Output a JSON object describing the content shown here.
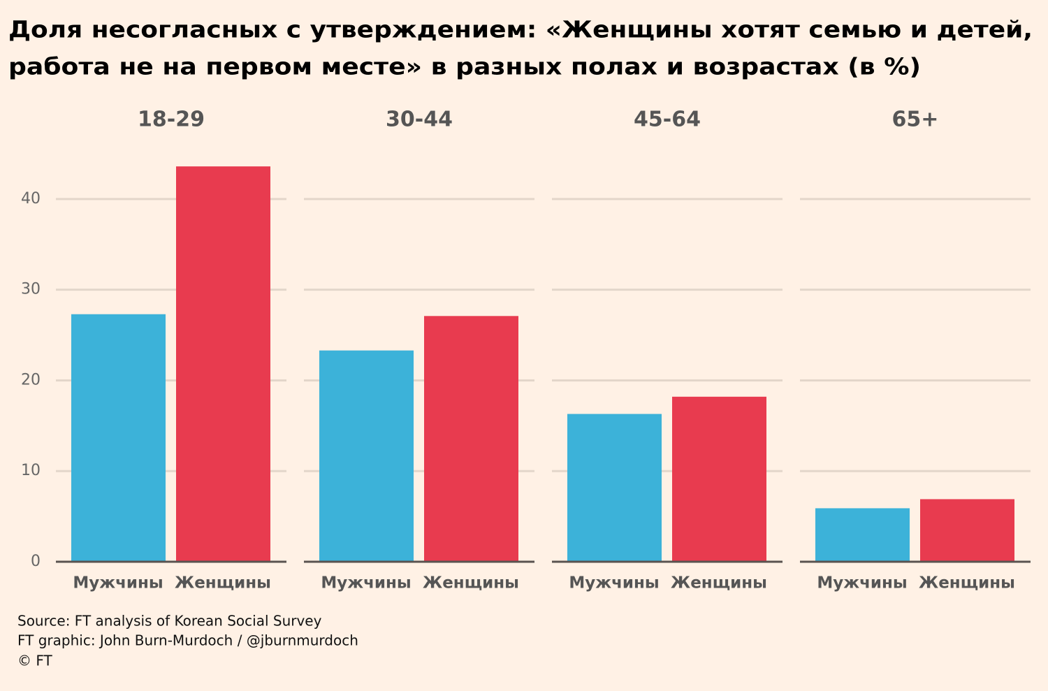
{
  "title": [
    "Доля несогласных с утверждением: «Женщины хотят семью и детей,",
    "работа не на первом месте» в разных полах и возрастах (в %)"
  ],
  "chart_data": [
    {
      "type": "bar",
      "title": "18-29",
      "categories": [
        "Мужчины",
        "Женщины"
      ],
      "values": [
        27.3,
        43.6
      ],
      "colors": [
        "#3cb2d9",
        "#e83b4f"
      ],
      "ylim": [
        0,
        45
      ],
      "yticks": [
        0,
        10,
        20,
        30,
        40
      ],
      "grid": true
    },
    {
      "type": "bar",
      "title": "30-44",
      "categories": [
        "Мужчины",
        "Женщины"
      ],
      "values": [
        23.3,
        27.1
      ],
      "colors": [
        "#3cb2d9",
        "#e83b4f"
      ],
      "ylim": [
        0,
        45
      ],
      "yticks": [
        0,
        10,
        20,
        30,
        40
      ],
      "grid": true
    },
    {
      "type": "bar",
      "title": "45-64",
      "categories": [
        "Мужчины",
        "Женщины"
      ],
      "values": [
        16.3,
        18.2
      ],
      "colors": [
        "#3cb2d9",
        "#e83b4f"
      ],
      "ylim": [
        0,
        45
      ],
      "yticks": [
        0,
        10,
        20,
        30,
        40
      ],
      "grid": true
    },
    {
      "type": "bar",
      "title": "65+",
      "categories": [
        "Мужчины",
        "Женщины"
      ],
      "values": [
        5.9,
        6.9
      ],
      "colors": [
        "#3cb2d9",
        "#e83b4f"
      ],
      "ylim": [
        0,
        45
      ],
      "yticks": [
        0,
        10,
        20,
        30,
        40
      ],
      "grid": true
    }
  ],
  "notes": [
    "Source: FT analysis of Korean Social Survey",
    "FT graphic: John Burn-Murdoch / @jburnmurdoch",
    "© FT"
  ]
}
